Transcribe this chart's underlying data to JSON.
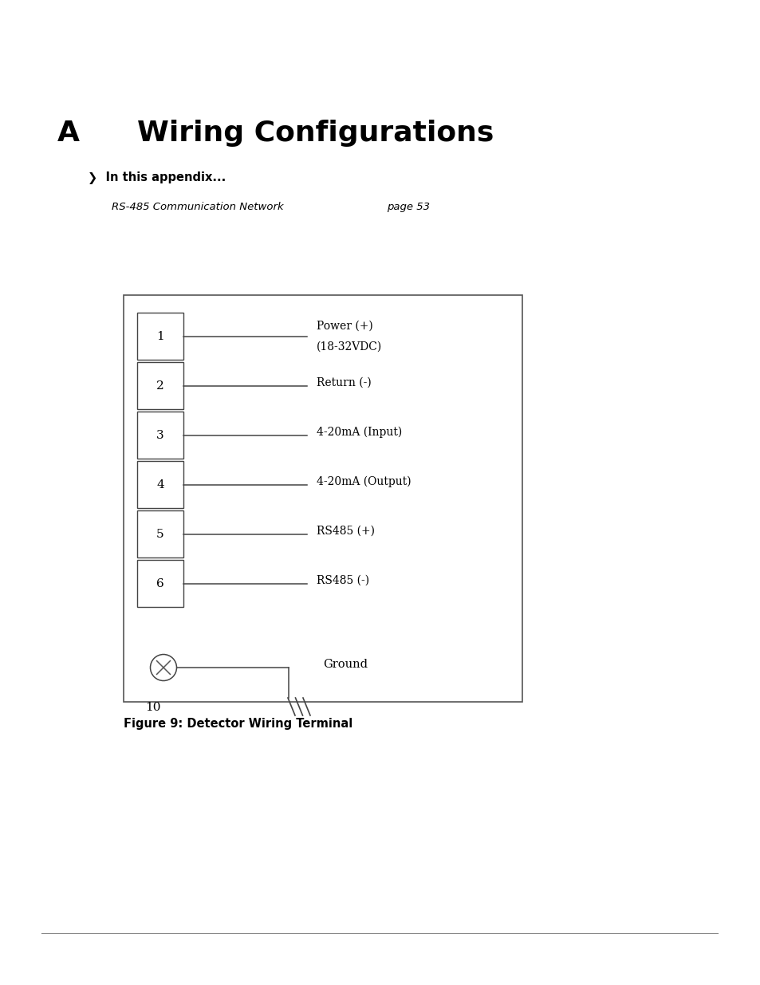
{
  "title_letter": "A",
  "title_text": "Wiring Configurations",
  "appendix_label": "❯  In this appendix...",
  "toc_entry": "RS-485 Communication Network",
  "toc_page": "page 53",
  "terminals": [
    {
      "num": "1",
      "label1": "Power (+)",
      "label2": "(18-32VDC)"
    },
    {
      "num": "2",
      "label1": "Return (-)",
      "label2": ""
    },
    {
      "num": "3",
      "label1": "4-20mA (Input)",
      "label2": ""
    },
    {
      "num": "4",
      "label1": "4-20mA (Output)",
      "label2": ""
    },
    {
      "num": "5",
      "label1": "RS485 (+)",
      "label2": ""
    },
    {
      "num": "6",
      "label1": "RS485 (-)",
      "label2": ""
    }
  ],
  "ground_label": "Ground",
  "ground_num": "10",
  "figure_caption": "Figure 9: Detector Wiring Terminal",
  "bg_color": "#ffffff",
  "text_color": "#000000",
  "diagram_edge_color": "#555555",
  "terminal_edge_color": "#444444"
}
